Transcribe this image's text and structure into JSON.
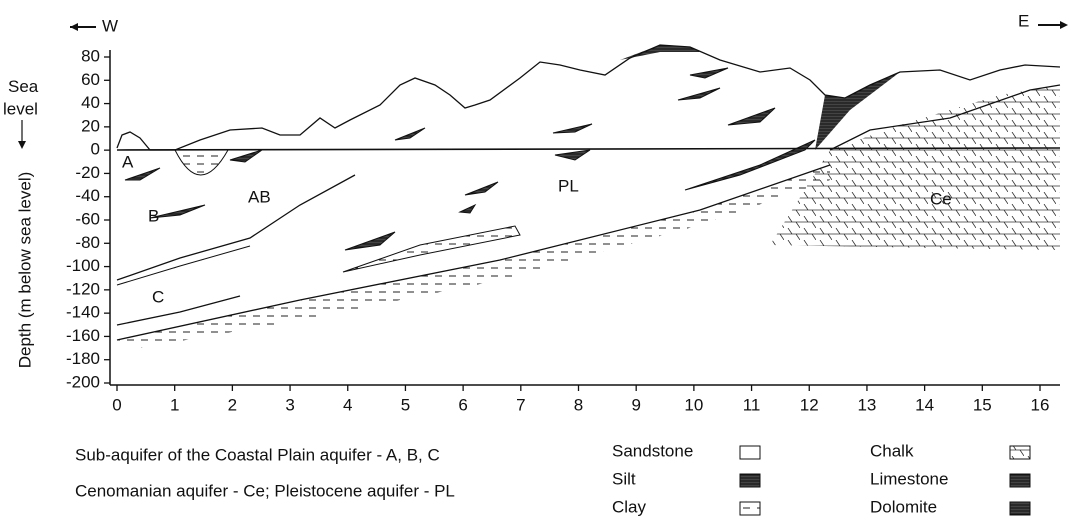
{
  "header": {
    "west": "W",
    "east": "E"
  },
  "sea_level_label": "Sea level",
  "axes": {
    "y_label": "Depth (m below sea level)",
    "y_ticks": [
      80,
      60,
      40,
      20,
      0,
      -20,
      -40,
      -60,
      -80,
      -100,
      -120,
      -140,
      -160,
      -180,
      -200
    ],
    "x_ticks": [
      0,
      1,
      2,
      3,
      4,
      5,
      6,
      7,
      8,
      9,
      10,
      11,
      12,
      13,
      14,
      15,
      16
    ]
  },
  "units": {
    "A": "A",
    "AB": "AB",
    "B": "B",
    "C": "C",
    "PL": "PL",
    "Ce": "Ce"
  },
  "legend": {
    "notes": [
      "Sub-aquifer of the Coastal Plain aquifer - A, B, C",
      "Cenomanian aquifer - Ce;  Pleistocene aquifer - PL"
    ],
    "lithology": [
      "Sandstone",
      "Silt",
      "Clay",
      "Chalk",
      "Limestone",
      "Dolomite"
    ]
  }
}
